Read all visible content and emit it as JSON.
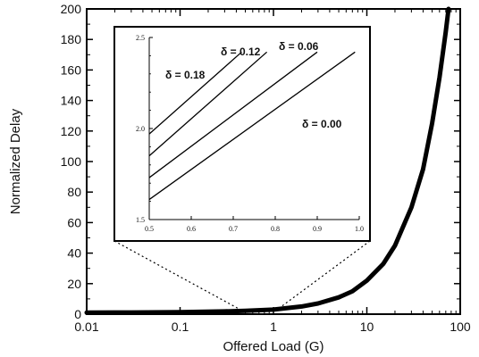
{
  "chart_data": [
    {
      "type": "line",
      "xlabel": "Offered Load (G)",
      "ylabel": "Normalized Delay",
      "xscale": "log",
      "xlim": [
        0.01,
        100
      ],
      "ylim": [
        0,
        200
      ],
      "x_ticks": [
        "0.01",
        "0.1",
        "1",
        "10",
        "100"
      ],
      "y_ticks": [
        "0",
        "20",
        "40",
        "60",
        "80",
        "100",
        "120",
        "140",
        "160",
        "180",
        "200"
      ],
      "grid": false,
      "series": [
        {
          "color": "#000000",
          "x": [
            0.01,
            0.03,
            0.1,
            0.3,
            0.5,
            1,
            2,
            3,
            5,
            7,
            10,
            15,
            20,
            30,
            40,
            50,
            60,
            70,
            75
          ],
          "y": [
            1,
            1.1,
            1.3,
            1.8,
            2.2,
            3,
            5,
            7,
            11,
            15,
            22,
            33,
            45,
            70,
            95,
            125,
            155,
            185,
            200
          ]
        }
      ]
    },
    {
      "type": "line",
      "inset": true,
      "xlim": [
        0.5,
        1.0
      ],
      "ylim": [
        1.5,
        2.5
      ],
      "x_ticks": [
        "0.5",
        "0.6",
        "0.7",
        "0.8",
        "0.9",
        "1.0"
      ],
      "y_ticks": [
        "1.5",
        "2.0",
        "2.5"
      ],
      "series": [
        {
          "name": "δ = 0.18",
          "x": [
            0.5,
            0.72
          ],
          "y": [
            1.97,
            2.42
          ]
        },
        {
          "name": "δ = 0.12",
          "x": [
            0.5,
            0.78
          ],
          "y": [
            1.85,
            2.42
          ]
        },
        {
          "name": "δ = 0.06",
          "x": [
            0.5,
            0.9
          ],
          "y": [
            1.73,
            2.42
          ]
        },
        {
          "name": "δ = 0.00",
          "x": [
            0.5,
            0.99
          ],
          "y": [
            1.61,
            2.42
          ]
        }
      ]
    }
  ]
}
